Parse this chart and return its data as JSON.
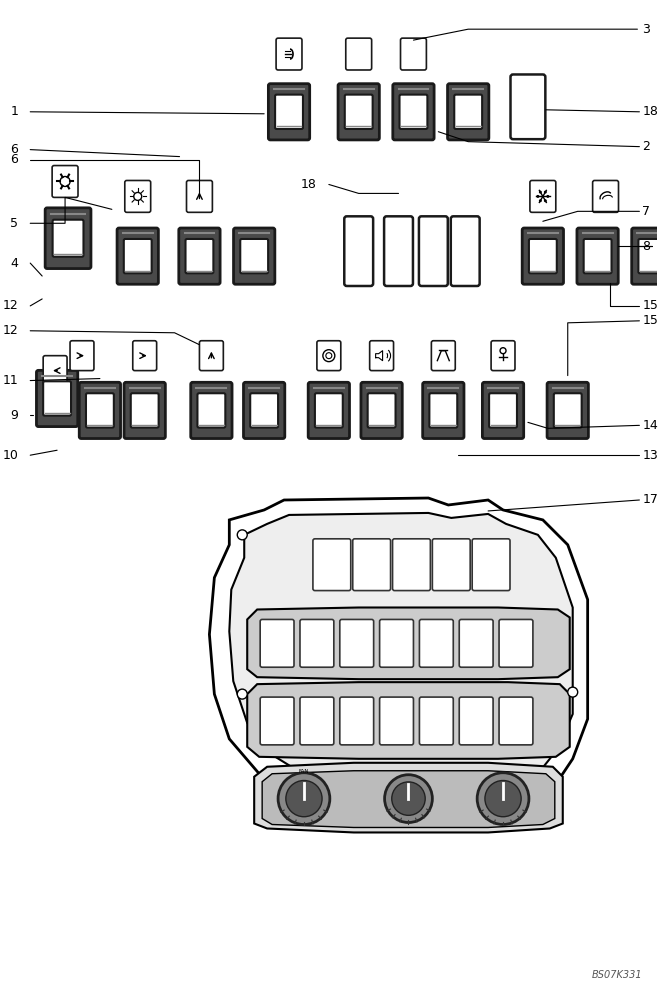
{
  "bg_color": "#ffffff",
  "line_color": "#000000",
  "figsize": [
    6.6,
    10.0
  ],
  "dpi": 100,
  "watermark": "BS07K331"
}
